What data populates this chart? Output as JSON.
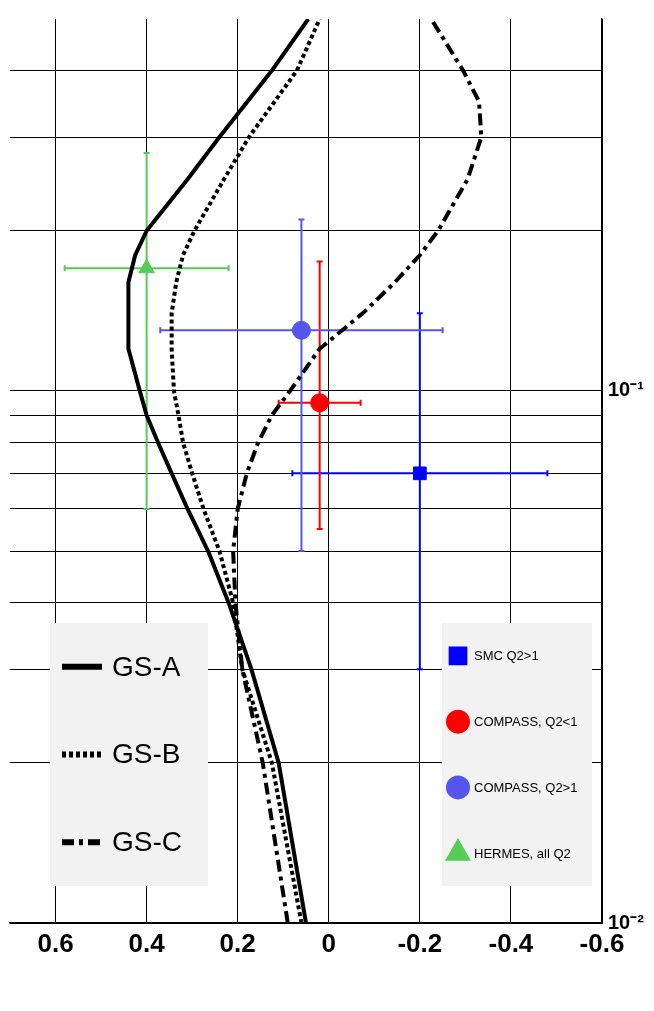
{
  "chart_data": {
    "type": "line",
    "log": "y",
    "grid": true,
    "legend": "left",
    "xlim": [
      0.7,
      -0.6
    ],
    "ylim": [
      0.01,
      0.5
    ],
    "yticks": [
      {
        "value": 0.01,
        "label": "10⁻²"
      },
      {
        "value": 0.02,
        "label": null
      },
      {
        "value": 0.03,
        "label": null
      },
      {
        "value": 0.04,
        "label": null
      },
      {
        "value": 0.05,
        "label": null
      },
      {
        "value": 0.06,
        "label": null
      },
      {
        "value": 0.07,
        "label": null
      },
      {
        "value": 0.08,
        "label": null
      },
      {
        "value": 0.09,
        "label": null
      },
      {
        "value": 0.1,
        "label": "10⁻¹"
      },
      {
        "value": 0.2,
        "label": null
      },
      {
        "value": 0.3,
        "label": null
      },
      {
        "value": 0.4,
        "label": null
      }
    ],
    "xticks": [
      0.6,
      0.4,
      0.2,
      0,
      -0.2,
      -0.4,
      -0.6
    ],
    "series": [
      {
        "name": "GS-A",
        "type": "line",
        "color": "#000000",
        "line_style": "solid",
        "marker": "none",
        "values": [
          0.01,
          0.02,
          0.03,
          0.04,
          0.05,
          0.06,
          0.07,
          0.08,
          0.09,
          0.1,
          0.12,
          0.16,
          0.18,
          0.2,
          0.25,
          0.3,
          0.4,
          0.5
        ],
        "x": [
          0.05,
          0.11,
          0.17,
          0.22,
          0.265,
          0.31,
          0.345,
          0.375,
          0.4,
          0.415,
          0.44,
          0.44,
          0.425,
          0.4,
          0.31,
          0.24,
          0.125,
          0.045
        ]
      },
      {
        "name": "GS-B",
        "type": "line",
        "color": "#000000",
        "line_style": "dotted",
        "marker": "none",
        "values": [
          0.01,
          0.02,
          0.03,
          0.04,
          0.05,
          0.06,
          0.07,
          0.08,
          0.09,
          0.1,
          0.12,
          0.14,
          0.16,
          0.18,
          0.2,
          0.25,
          0.3,
          0.4,
          0.5
        ],
        "x": [
          0.06,
          0.125,
          0.19,
          0.21,
          0.24,
          0.275,
          0.3,
          0.32,
          0.33,
          0.34,
          0.345,
          0.345,
          0.335,
          0.32,
          0.295,
          0.23,
          0.175,
          0.07,
          0.02
        ]
      },
      {
        "name": "GS-C",
        "type": "line",
        "color": "#000000",
        "line_style": "dashdot",
        "marker": "none",
        "values": [
          0.01,
          0.02,
          0.03,
          0.04,
          0.05,
          0.06,
          0.07,
          0.08,
          0.09,
          0.1,
          0.12,
          0.14,
          0.16,
          0.18,
          0.2,
          0.25,
          0.3,
          0.35,
          0.4,
          0.5
        ],
        "x": [
          0.09,
          0.145,
          0.19,
          0.205,
          0.21,
          0.2,
          0.18,
          0.155,
          0.125,
          0.085,
          0.02,
          -0.075,
          -0.145,
          -0.2,
          -0.24,
          -0.305,
          -0.335,
          -0.33,
          -0.295,
          -0.225
        ]
      },
      {
        "name": "SMC Q2>1",
        "type": "scatter",
        "color": "#0000ff",
        "marker": "square",
        "x": [
          -0.2
        ],
        "values": [
          0.07
        ],
        "xerrors": [
          0.28
        ],
        "errors": [
          [
            0.03,
            0.14
          ]
        ]
      },
      {
        "name": "COMPASS, Q2<1",
        "type": "scatter",
        "color": "#ff0000",
        "marker": "circle",
        "x": [
          0.02
        ],
        "values": [
          0.095
        ],
        "xerrors": [
          0.09
        ],
        "errors": [
          [
            0.055,
            0.175
          ]
        ]
      },
      {
        "name": "COMPASS, Q2>1",
        "type": "scatter",
        "color": "#5555ee",
        "marker": "circle",
        "x": [
          0.06
        ],
        "values": [
          0.13
        ],
        "xerrors": [
          0.31
        ],
        "errors": [
          [
            0.05,
            0.21
          ]
        ]
      },
      {
        "name": "HERMES, all Q2",
        "type": "scatter",
        "color": "#55cc55",
        "marker": "triangle",
        "x": [
          0.4
        ],
        "values": [
          0.17
        ],
        "xerrors": [
          0.18
        ],
        "errors": [
          [
            0.06,
            0.28
          ]
        ]
      }
    ]
  }
}
